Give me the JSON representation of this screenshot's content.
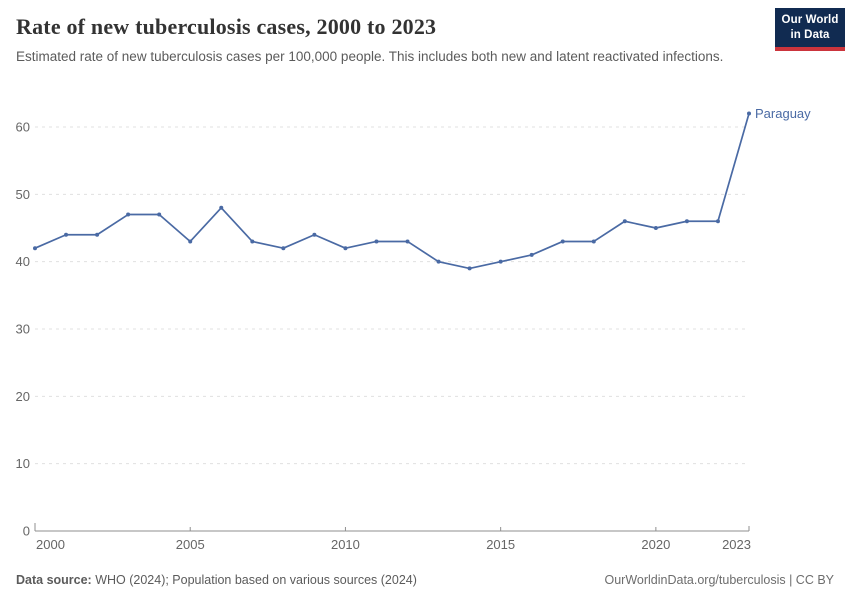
{
  "header": {
    "title": "Rate of new tuberculosis cases, 2000 to 2023",
    "subtitle": "Estimated rate of new tuberculosis cases per 100,000 people. This includes both new and latent reactivated infections.",
    "logo": {
      "line1": "Our World",
      "line2": "in Data"
    }
  },
  "footer": {
    "source_label": "Data source:",
    "source_text": " WHO (2024); Population based on various sources (2024)",
    "credit": "OurWorldinData.org/tuberculosis | CC BY"
  },
  "colors": {
    "line": "#4A6AA4",
    "series_label": "#4A6AA4",
    "grid": "#E0E0E0",
    "axis": "#8F8F8F",
    "tick_text": "#666666",
    "title_text": "#333333",
    "subtitle_text": "#5B5B5B",
    "footer_text": "#5B5B5B",
    "logo_bg": "#112B51",
    "logo_stripe": "#CB343C"
  },
  "chart_data": {
    "type": "line",
    "title": "Rate of new tuberculosis cases, 2000 to 2023",
    "xlabel": "",
    "ylabel": "",
    "x_range": [
      2000,
      2023
    ],
    "x_ticks": [
      2000,
      2005,
      2010,
      2015,
      2020,
      2023
    ],
    "y_ticks": [
      0,
      10,
      20,
      30,
      40,
      50,
      60
    ],
    "ylim": [
      0,
      60
    ],
    "grid": "horizontal-dashed",
    "legend": "end-of-line-label",
    "series": [
      {
        "name": "Paraguay",
        "color": "#4A6AA4",
        "x": [
          2000,
          2001,
          2002,
          2003,
          2004,
          2005,
          2006,
          2007,
          2008,
          2009,
          2010,
          2011,
          2012,
          2013,
          2014,
          2015,
          2016,
          2017,
          2018,
          2019,
          2020,
          2021,
          2022,
          2023
        ],
        "values": [
          42,
          44,
          44,
          47,
          47,
          43,
          48,
          43,
          42,
          44,
          42,
          43,
          43,
          40,
          39,
          40,
          41,
          43,
          43,
          46,
          45,
          46,
          46,
          62
        ]
      }
    ]
  }
}
